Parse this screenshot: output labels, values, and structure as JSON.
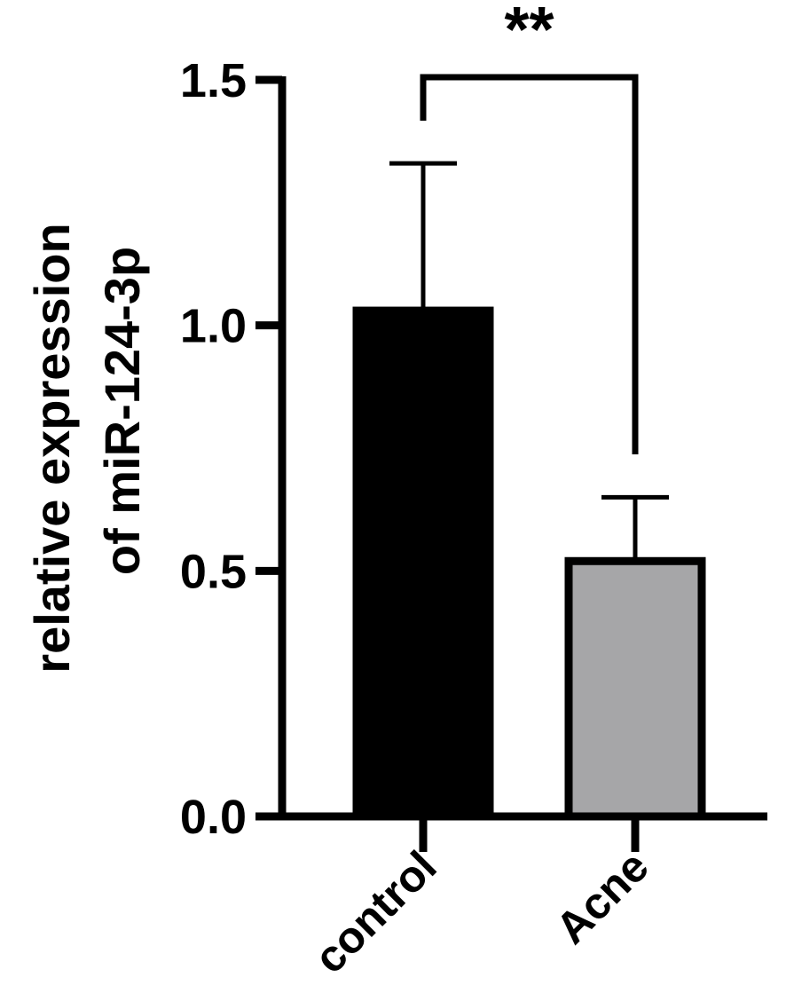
{
  "chart_data": {
    "type": "bar",
    "categories": [
      "control",
      "Acne"
    ],
    "values": [
      1.03,
      0.52
    ],
    "errors": [
      0.3,
      0.13
    ],
    "colors": [
      "#000000",
      "#a6a6a8"
    ],
    "ylabel_lines": [
      "relative expression",
      "of miR-124-3p"
    ],
    "ylim": [
      0,
      1.5
    ],
    "yticks": [
      0.0,
      0.5,
      1.0,
      1.5
    ],
    "ytick_labels": [
      "0.0",
      "0.5",
      "1.0",
      "1.5"
    ],
    "grid": false,
    "legend": "none",
    "significance": {
      "between": [
        "control",
        "Acne"
      ],
      "label": "**"
    }
  }
}
